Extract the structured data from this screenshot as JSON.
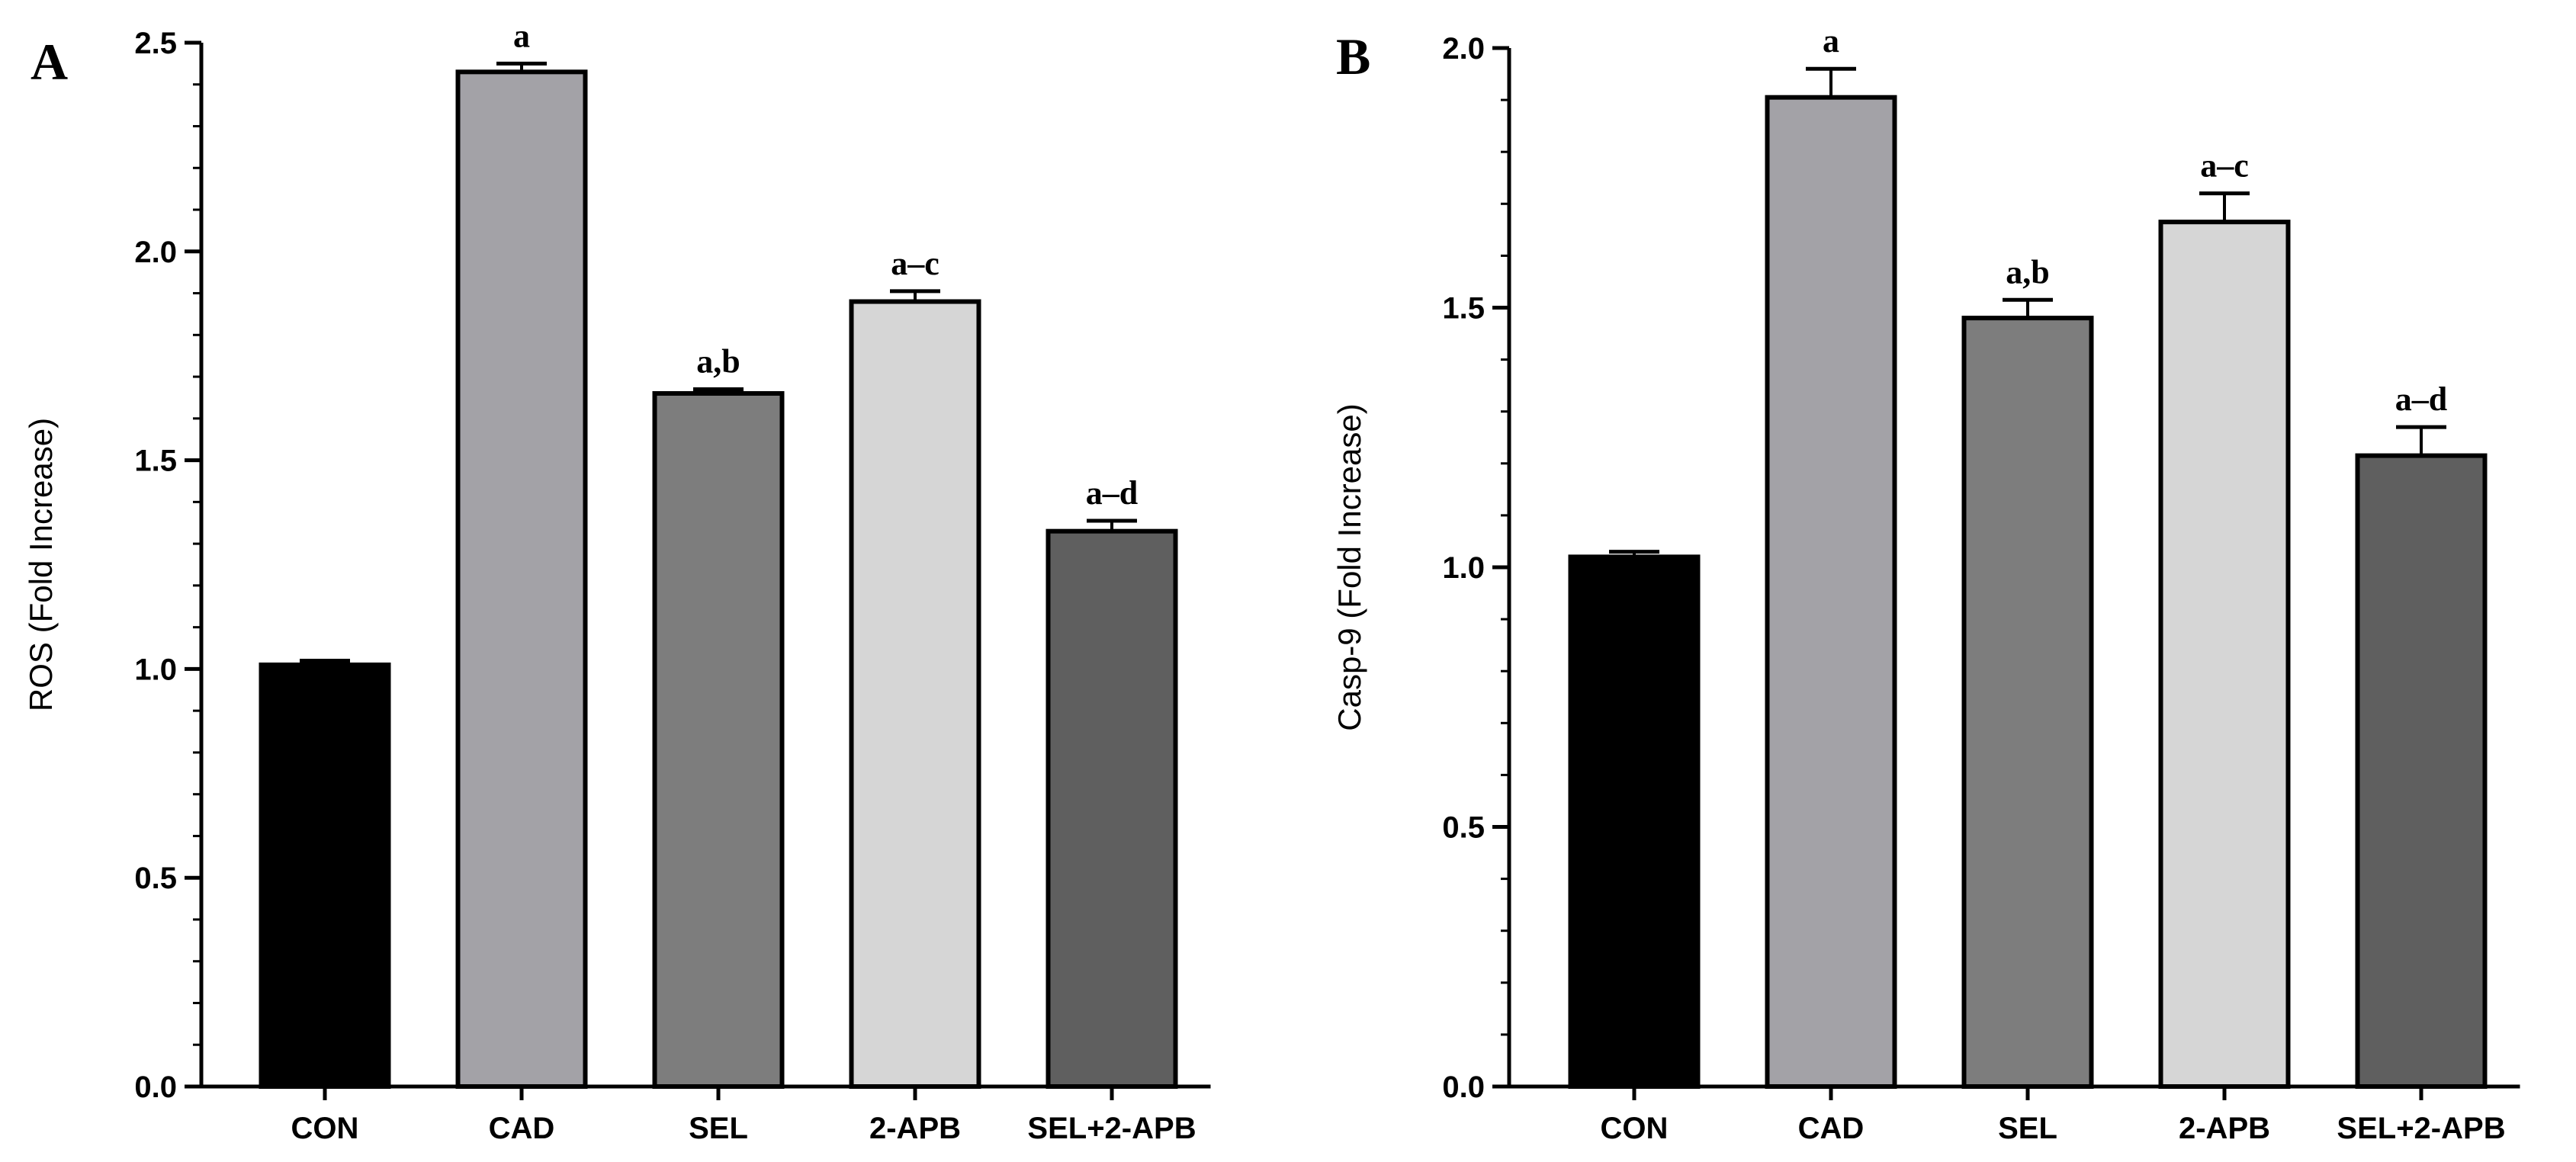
{
  "chart_data": [
    {
      "type": "bar",
      "panel_label": "A",
      "categories": [
        "CON",
        "CAD",
        "SEL",
        "2-APB",
        "SEL+2-APB"
      ],
      "values": [
        1.01,
        2.43,
        1.66,
        1.88,
        1.33
      ],
      "errors": [
        0.01,
        0.02,
        0.01,
        0.025,
        0.025
      ],
      "significance": [
        "",
        "a",
        "a,b",
        "a–c",
        "a–d"
      ],
      "colors": [
        "#000000",
        "#a3a2a7",
        "#7d7d7d",
        "#d6d6d6",
        "#5f5f5f"
      ],
      "title": "",
      "xlabel": "",
      "ylabel": "ROS (Fold Increase)",
      "ylim": [
        0,
        2.5
      ],
      "yticks": [
        "0.0",
        "0.5",
        "1.0",
        "1.5",
        "2.0",
        "2.5"
      ]
    },
    {
      "type": "bar",
      "panel_label": "B",
      "categories": [
        "CON",
        "CAD",
        "SEL",
        "2-APB",
        "SEL+2-APB"
      ],
      "values": [
        1.02,
        1.905,
        1.48,
        1.665,
        1.215
      ],
      "errors": [
        0.01,
        0.055,
        0.035,
        0.055,
        0.055
      ],
      "significance": [
        "",
        "a",
        "a,b",
        "a–c",
        "a–d"
      ],
      "colors": [
        "#000000",
        "#a3a2a7",
        "#7d7d7d",
        "#d6d6d6",
        "#5f5f5f"
      ],
      "title": "",
      "xlabel": "",
      "ylabel": "Casp-9 (Fold Increase)",
      "ylim": [
        0,
        2.0
      ],
      "yticks": [
        "0.0",
        "0.5",
        "1.0",
        "1.5",
        "2.0"
      ]
    }
  ]
}
